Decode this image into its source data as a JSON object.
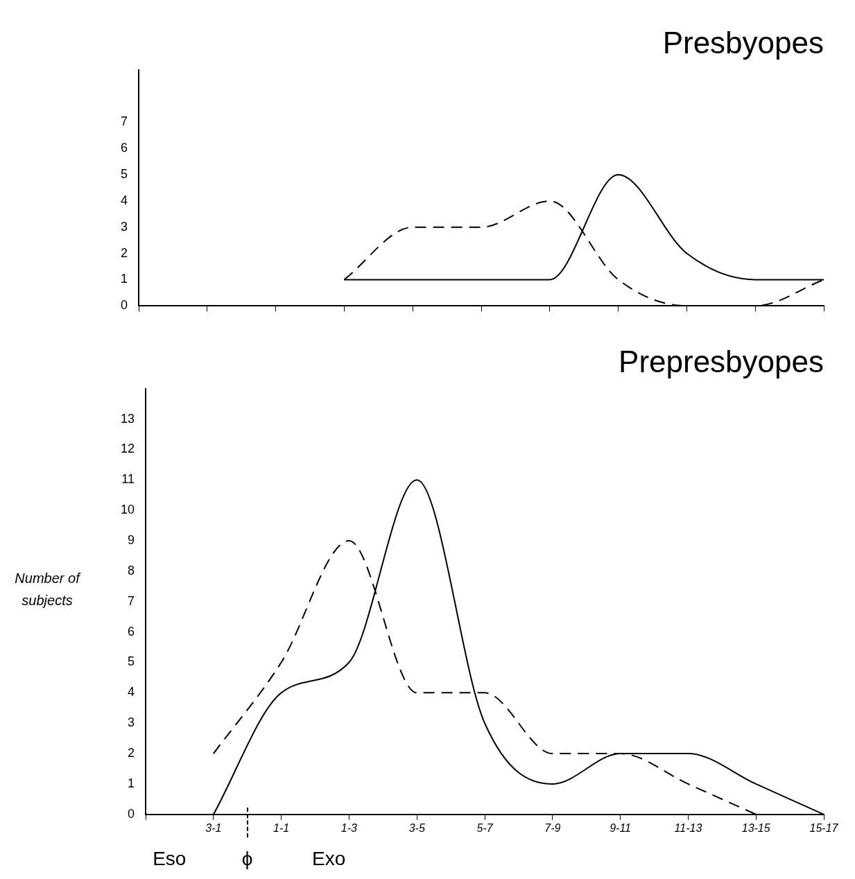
{
  "chart_data": [
    {
      "type": "line",
      "title": "Presbyopes",
      "categories": [
        null,
        null,
        null,
        null,
        null,
        null,
        null,
        null,
        null,
        null,
        null
      ],
      "series": [
        {
          "color": "#000000",
          "line_style": "solid",
          "values": [
            null,
            null,
            null,
            1,
            1,
            1,
            1,
            5,
            2,
            1,
            1
          ]
        },
        {
          "color": "#000000",
          "line_style": "dashed",
          "values": [
            null,
            null,
            null,
            1,
            3,
            3,
            4,
            1,
            0,
            0,
            1
          ]
        }
      ],
      "ylim": [
        0,
        9
      ],
      "yticks": [
        0,
        1,
        2,
        3,
        4,
        5,
        6,
        7
      ],
      "grid": false,
      "tick_labels": "y"
    },
    {
      "type": "line",
      "title": "Prepresbyopes",
      "ylabel": "Number of subjects",
      "categories": [
        null,
        "3-1",
        "1-1",
        "1-3",
        "3-5",
        "5-7",
        "7-9",
        "9-11",
        "11-13",
        "13-15",
        "15-17"
      ],
      "series": [
        {
          "color": "#000000",
          "line_style": "solid",
          "values": [
            null,
            0,
            4,
            5,
            11,
            3,
            1,
            2,
            2,
            1,
            0
          ]
        },
        {
          "color": "#000000",
          "line_style": "dashed",
          "values": [
            null,
            2,
            5,
            9,
            4,
            4,
            2,
            2,
            1,
            0,
            null
          ]
        }
      ],
      "ylim": [
        0,
        14
      ],
      "yticks": [
        0,
        1,
        2,
        3,
        4,
        5,
        6,
        7,
        8,
        9,
        10,
        11,
        12,
        13
      ],
      "grid": false,
      "annotations": [
        "Eso",
        "ϕ",
        "Exo"
      ]
    }
  ]
}
